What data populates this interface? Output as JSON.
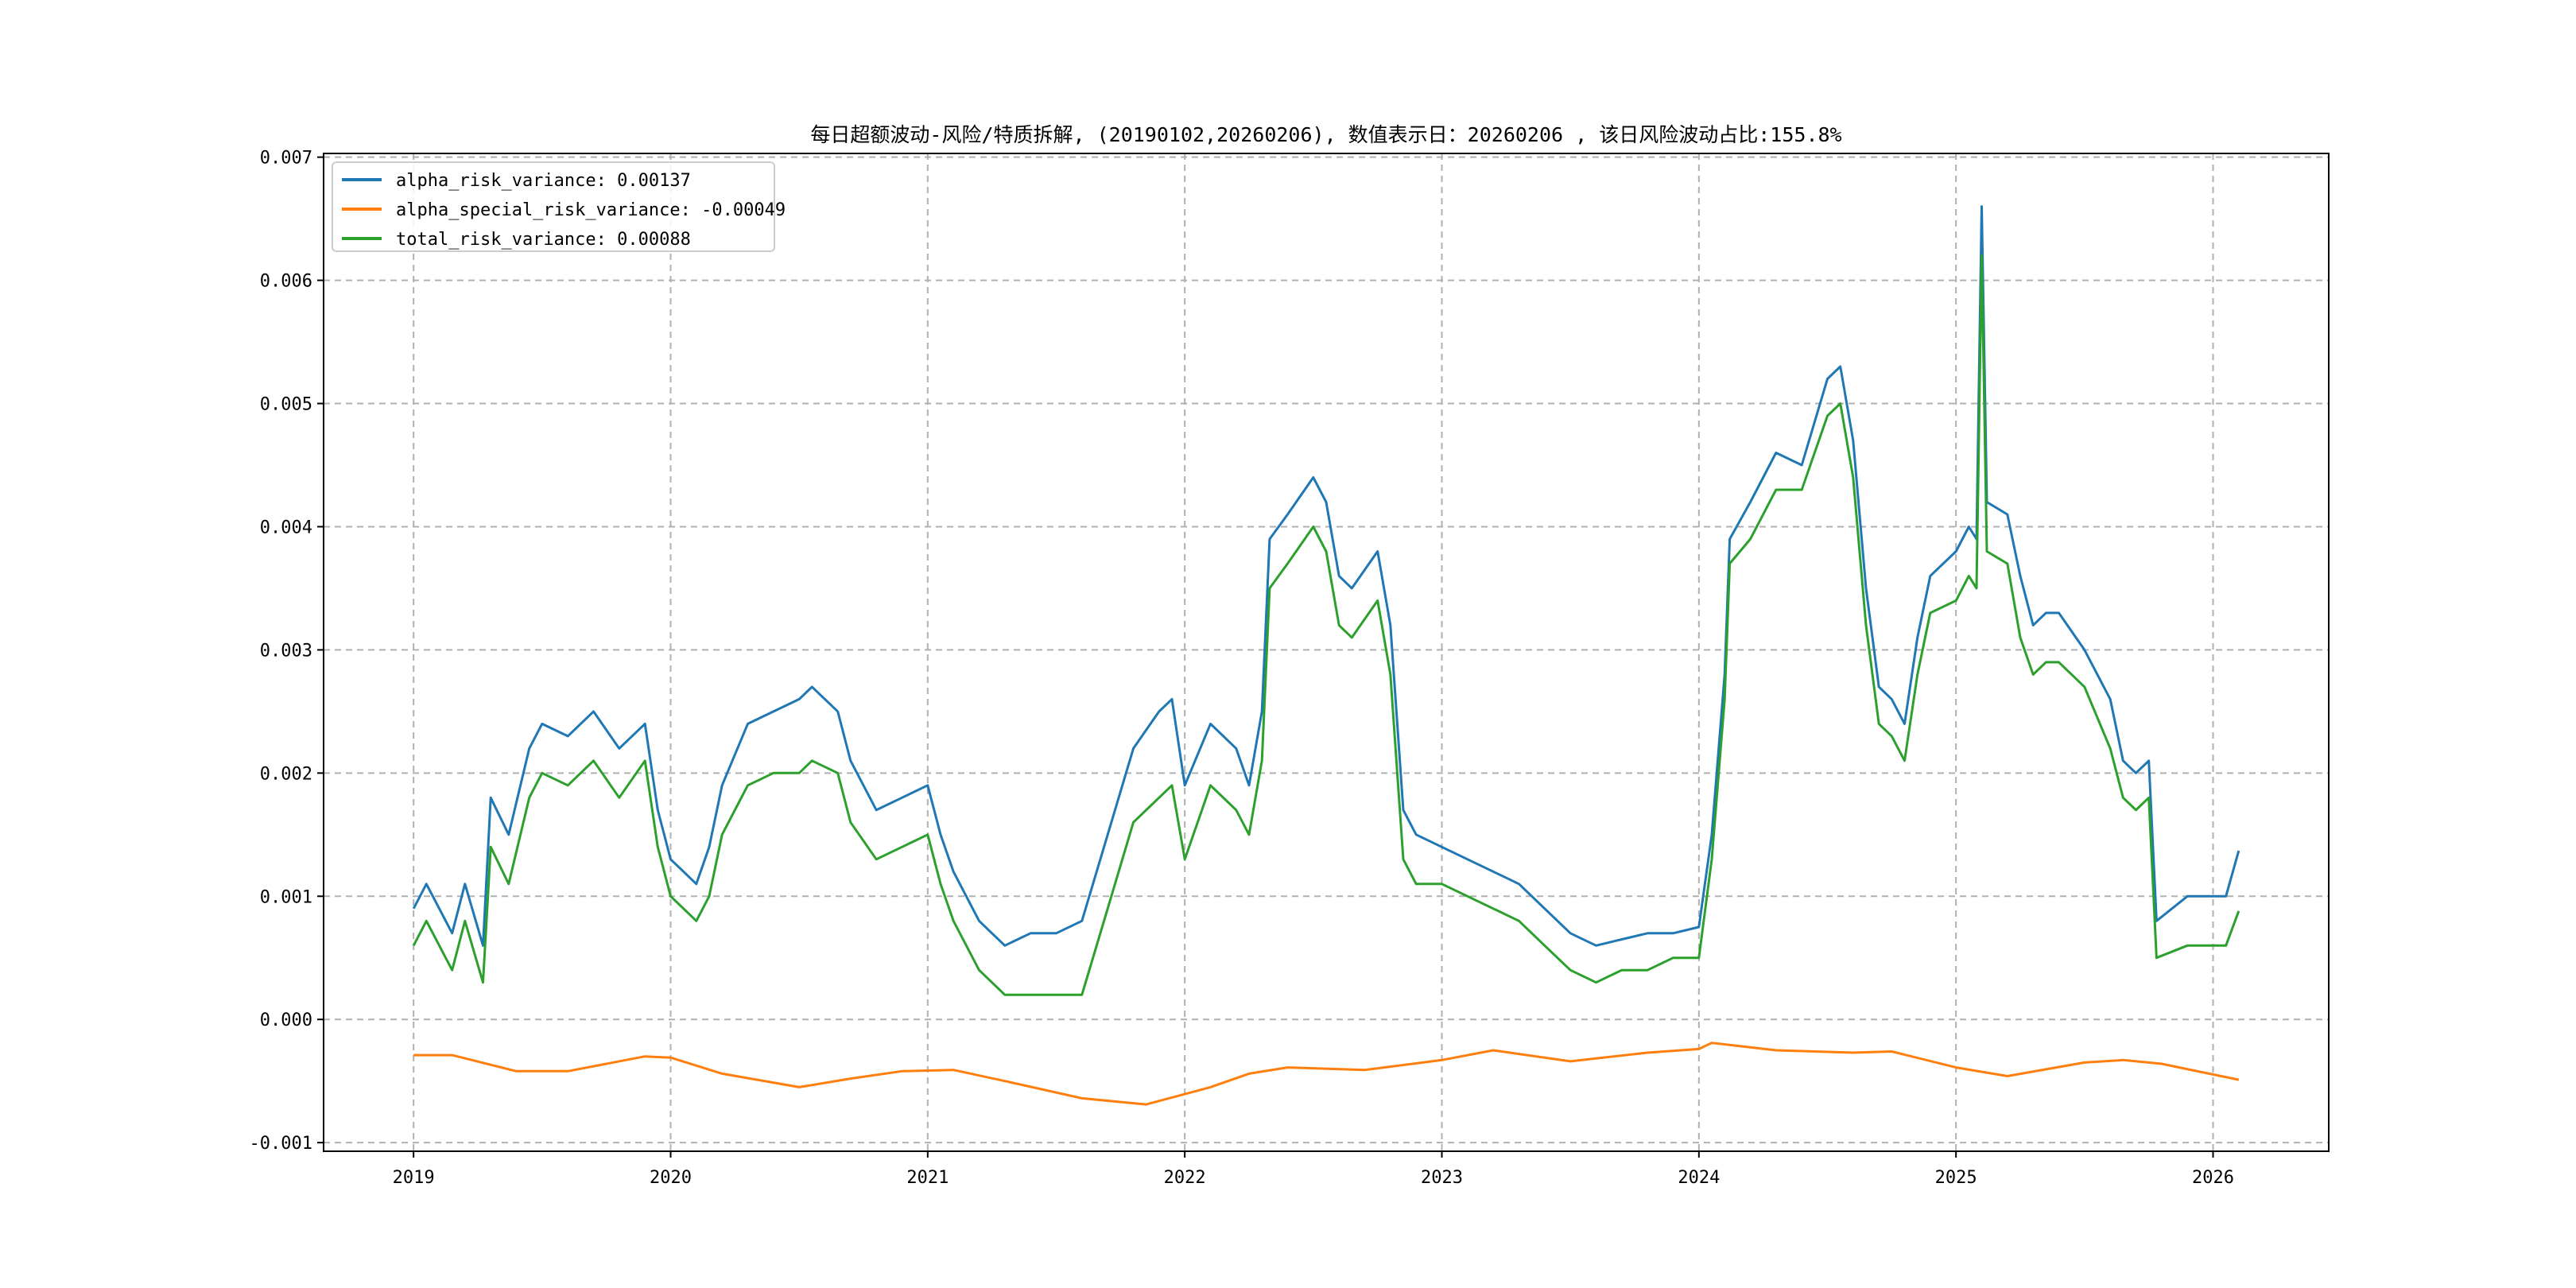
{
  "chart_data": {
    "type": "line",
    "title": "每日超额波动-风险/特质拆解, (20190102,20260206),  数值表示日：20260206 , 该日风险波动占比:155.8%",
    "xlabel": "",
    "ylabel": "",
    "xlim": [
      2018.65,
      2026.45
    ],
    "ylim": [
      -0.00107,
      0.00703
    ],
    "grid": true,
    "legend_position": "top-left",
    "xticks": [
      2019,
      2020,
      2021,
      2022,
      2023,
      2024,
      2025,
      2026
    ],
    "xtick_labels": [
      "2019",
      "2020",
      "2021",
      "2022",
      "2023",
      "2024",
      "2025",
      "2026"
    ],
    "yticks": [
      -0.001,
      0,
      0.001,
      0.002,
      0.003,
      0.004,
      0.005,
      0.006,
      0.007
    ],
    "ytick_labels": [
      "-0.001",
      "0.000",
      "0.001",
      "0.002",
      "0.003",
      "0.004",
      "0.005",
      "0.006",
      "0.007"
    ],
    "series": [
      {
        "name": "alpha_risk_variance",
        "legend_label": "alpha_risk_variance: 0.00137",
        "color": "#1f77b4",
        "x": [
          2019.0,
          2019.05,
          2019.1,
          2019.15,
          2019.2,
          2019.27,
          2019.3,
          2019.37,
          2019.45,
          2019.5,
          2019.6,
          2019.7,
          2019.8,
          2019.9,
          2019.95,
          2020.0,
          2020.05,
          2020.1,
          2020.15,
          2020.2,
          2020.3,
          2020.4,
          2020.5,
          2020.55,
          2020.65,
          2020.7,
          2020.8,
          2020.9,
          2021.0,
          2021.05,
          2021.1,
          2021.2,
          2021.3,
          2021.4,
          2021.5,
          2021.6,
          2021.7,
          2021.8,
          2021.9,
          2021.95,
          2022.0,
          2022.1,
          2022.2,
          2022.25,
          2022.3,
          2022.33,
          2022.4,
          2022.5,
          2022.55,
          2022.6,
          2022.65,
          2022.75,
          2022.8,
          2022.85,
          2022.9,
          2023.0,
          2023.1,
          2023.2,
          2023.3,
          2023.4,
          2023.5,
          2023.6,
          2023.7,
          2023.8,
          2023.9,
          2024.0,
          2024.05,
          2024.1,
          2024.12,
          2024.2,
          2024.3,
          2024.4,
          2024.5,
          2024.55,
          2024.6,
          2024.65,
          2024.7,
          2024.75,
          2024.8,
          2024.85,
          2024.9,
          2025.0,
          2025.05,
          2025.08,
          2025.1,
          2025.12,
          2025.2,
          2025.25,
          2025.3,
          2025.35,
          2025.4,
          2025.5,
          2025.6,
          2025.65,
          2025.7,
          2025.75,
          2025.78,
          2025.9,
          2026.0,
          2026.05,
          2026.1
        ],
        "y": [
          0.0009,
          0.0011,
          0.0009,
          0.0007,
          0.0011,
          0.0006,
          0.0018,
          0.0015,
          0.0022,
          0.0024,
          0.0023,
          0.0025,
          0.0022,
          0.0024,
          0.0017,
          0.0013,
          0.0012,
          0.0011,
          0.0014,
          0.0019,
          0.0024,
          0.0025,
          0.0026,
          0.0027,
          0.0025,
          0.0021,
          0.0017,
          0.0018,
          0.0019,
          0.0015,
          0.0012,
          0.0008,
          0.0006,
          0.0007,
          0.0007,
          0.0008,
          0.0015,
          0.0022,
          0.0025,
          0.0026,
          0.0019,
          0.0024,
          0.0022,
          0.0019,
          0.0025,
          0.0039,
          0.0041,
          0.0044,
          0.0042,
          0.0036,
          0.0035,
          0.0038,
          0.0032,
          0.0017,
          0.0015,
          0.0014,
          0.0013,
          0.0012,
          0.0011,
          0.0009,
          0.0007,
          0.0006,
          0.00065,
          0.0007,
          0.0007,
          0.00075,
          0.0015,
          0.0028,
          0.0039,
          0.0042,
          0.0046,
          0.0045,
          0.0052,
          0.0053,
          0.0047,
          0.0035,
          0.0027,
          0.0026,
          0.0024,
          0.0031,
          0.0036,
          0.0038,
          0.004,
          0.0039,
          0.0066,
          0.0042,
          0.0041,
          0.0036,
          0.0032,
          0.0033,
          0.0033,
          0.003,
          0.0026,
          0.0021,
          0.002,
          0.0021,
          0.0008,
          0.001,
          0.001,
          0.001,
          0.00137
        ]
      },
      {
        "name": "alpha_special_risk_variance",
        "legend_label": "alpha_special_risk_variance: -0.00049",
        "color": "#ff7f0e",
        "x": [
          2019.0,
          2019.15,
          2019.4,
          2019.6,
          2019.9,
          2020.0,
          2020.2,
          2020.5,
          2020.7,
          2020.9,
          2021.1,
          2021.3,
          2021.6,
          2021.85,
          2022.1,
          2022.25,
          2022.4,
          2022.7,
          2023.0,
          2023.2,
          2023.5,
          2023.8,
          2024.0,
          2024.05,
          2024.3,
          2024.6,
          2024.75,
          2025.0,
          2025.2,
          2025.5,
          2025.65,
          2025.8,
          2026.1
        ],
        "y": [
          -0.00029,
          -0.00029,
          -0.00042,
          -0.00042,
          -0.0003,
          -0.00031,
          -0.00044,
          -0.00055,
          -0.00048,
          -0.00042,
          -0.00041,
          -0.0005,
          -0.00064,
          -0.00069,
          -0.00055,
          -0.00044,
          -0.00039,
          -0.00041,
          -0.00033,
          -0.00025,
          -0.00034,
          -0.00027,
          -0.00024,
          -0.00019,
          -0.00025,
          -0.00027,
          -0.00026,
          -0.00039,
          -0.00046,
          -0.00035,
          -0.00033,
          -0.00036,
          -0.00049
        ]
      },
      {
        "name": "total_risk_variance",
        "legend_label": "total_risk_variance: 0.00088",
        "color": "#2ca02c",
        "x": [
          2019.0,
          2019.05,
          2019.1,
          2019.15,
          2019.2,
          2019.27,
          2019.3,
          2019.37,
          2019.45,
          2019.5,
          2019.6,
          2019.7,
          2019.8,
          2019.9,
          2019.95,
          2020.0,
          2020.05,
          2020.1,
          2020.15,
          2020.2,
          2020.3,
          2020.4,
          2020.5,
          2020.55,
          2020.65,
          2020.7,
          2020.8,
          2020.9,
          2021.0,
          2021.05,
          2021.1,
          2021.2,
          2021.3,
          2021.4,
          2021.5,
          2021.6,
          2021.7,
          2021.8,
          2021.9,
          2021.95,
          2022.0,
          2022.1,
          2022.2,
          2022.25,
          2022.3,
          2022.33,
          2022.4,
          2022.5,
          2022.55,
          2022.6,
          2022.65,
          2022.75,
          2022.8,
          2022.85,
          2022.9,
          2023.0,
          2023.1,
          2023.2,
          2023.3,
          2023.4,
          2023.5,
          2023.6,
          2023.7,
          2023.8,
          2023.9,
          2024.0,
          2024.05,
          2024.1,
          2024.12,
          2024.2,
          2024.3,
          2024.4,
          2024.5,
          2024.55,
          2024.6,
          2024.65,
          2024.7,
          2024.75,
          2024.8,
          2024.85,
          2024.9,
          2025.0,
          2025.05,
          2025.08,
          2025.1,
          2025.12,
          2025.2,
          2025.25,
          2025.3,
          2025.35,
          2025.4,
          2025.5,
          2025.6,
          2025.65,
          2025.7,
          2025.75,
          2025.78,
          2025.9,
          2026.0,
          2026.05,
          2026.1
        ],
        "y": [
          0.0006,
          0.0008,
          0.0006,
          0.0004,
          0.0008,
          0.0003,
          0.0014,
          0.0011,
          0.0018,
          0.002,
          0.0019,
          0.0021,
          0.0018,
          0.0021,
          0.0014,
          0.001,
          0.0009,
          0.0008,
          0.001,
          0.0015,
          0.0019,
          0.002,
          0.002,
          0.0021,
          0.002,
          0.0016,
          0.0013,
          0.0014,
          0.0015,
          0.0011,
          0.0008,
          0.0004,
          0.0002,
          0.0002,
          0.0002,
          0.0002,
          0.0009,
          0.0016,
          0.0018,
          0.0019,
          0.0013,
          0.0019,
          0.0017,
          0.0015,
          0.0021,
          0.0035,
          0.0037,
          0.004,
          0.0038,
          0.0032,
          0.0031,
          0.0034,
          0.0028,
          0.0013,
          0.0011,
          0.0011,
          0.001,
          0.0009,
          0.0008,
          0.0006,
          0.0004,
          0.0003,
          0.0004,
          0.0004,
          0.0005,
          0.0005,
          0.0013,
          0.0026,
          0.0037,
          0.0039,
          0.0043,
          0.0043,
          0.0049,
          0.005,
          0.0044,
          0.0032,
          0.0024,
          0.0023,
          0.0021,
          0.0028,
          0.0033,
          0.0034,
          0.0036,
          0.0035,
          0.0062,
          0.0038,
          0.0037,
          0.0031,
          0.0028,
          0.0029,
          0.0029,
          0.0027,
          0.0022,
          0.0018,
          0.0017,
          0.0018,
          0.0005,
          0.0006,
          0.0006,
          0.0006,
          0.00088
        ]
      }
    ]
  }
}
